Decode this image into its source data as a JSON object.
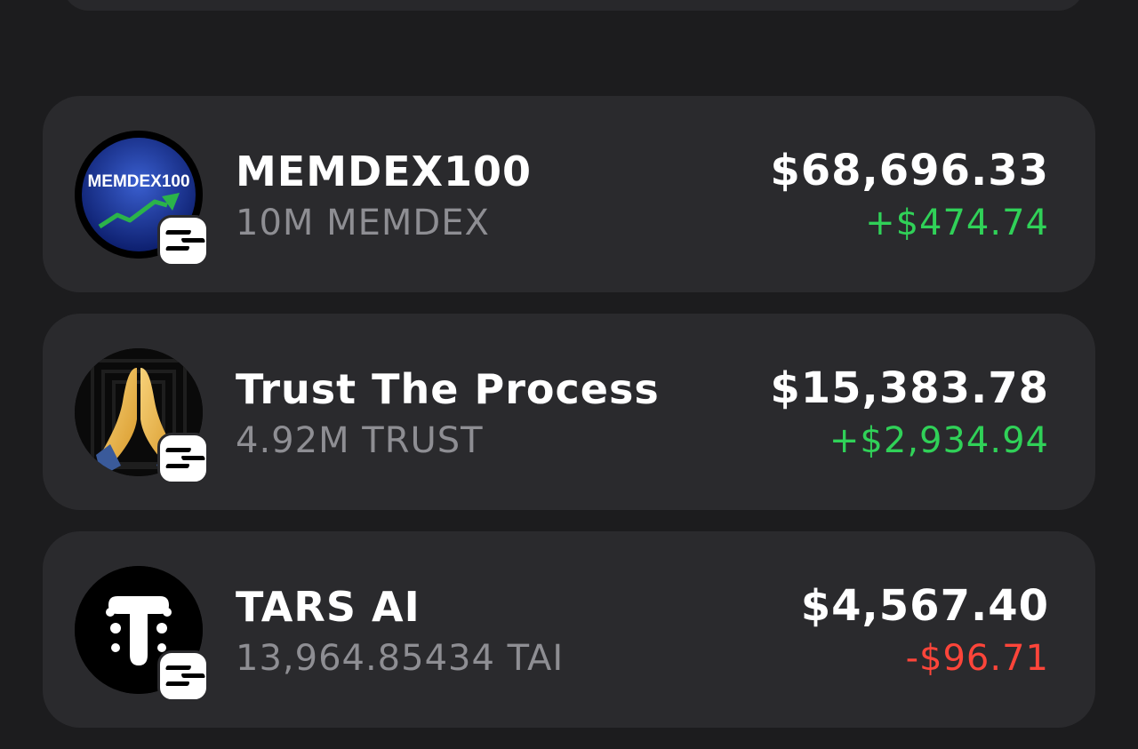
{
  "colors": {
    "background": "#1c1c1e",
    "card": "#2a2a2d",
    "positive": "#30d158",
    "negative": "#ff453a",
    "secondary_text": "#8e8e93"
  },
  "tokens": [
    {
      "name": "MEMDEX100",
      "balance": "10M MEMDEX",
      "value": "$68,696.33",
      "change": "+$474.74",
      "direction": "up",
      "icon": "memdex100-logo-icon",
      "icon_text": "MEMDEX100",
      "chain_icon": "solana-icon"
    },
    {
      "name": "Trust The Process",
      "balance": "4.92M TRUST",
      "value": "$15,383.78",
      "change": "+$2,934.94",
      "direction": "up",
      "icon": "praying-hands-icon",
      "chain_icon": "solana-icon"
    },
    {
      "name": "TARS AI",
      "balance": "13,964.85434 TAI",
      "value": "$4,567.40",
      "change": "-$96.71",
      "direction": "down",
      "icon": "tars-ai-logo-icon",
      "chain_icon": "solana-icon"
    }
  ]
}
